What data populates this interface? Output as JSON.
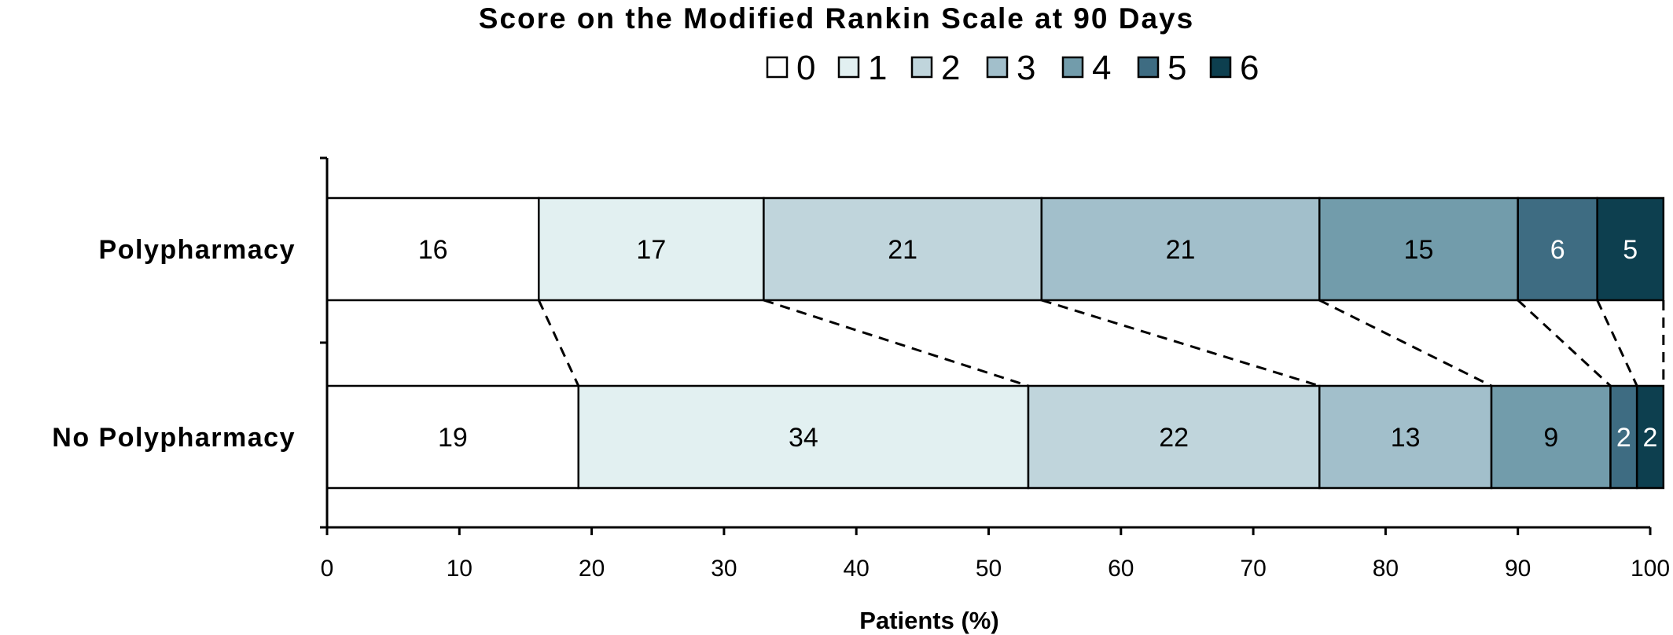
{
  "chart_data": {
    "type": "bar",
    "orientation": "horizontal",
    "stacked": true,
    "title": "Score on the Modified Rankin Scale at 90 Days",
    "xlabel": "Patients (%)",
    "ylabel": "",
    "xlim": [
      0,
      100
    ],
    "xticks": [
      "0",
      "10",
      "20",
      "30",
      "40",
      "50",
      "60",
      "70",
      "80",
      "90",
      "100"
    ],
    "legend_position": "top",
    "categories": [
      "Polypharmacy",
      "No Polypharmacy"
    ],
    "segments": [
      {
        "name": "0",
        "color": "#ffffff",
        "label_color": "#000000"
      },
      {
        "name": "1",
        "color": "#e2f0f1",
        "label_color": "#000000"
      },
      {
        "name": "2",
        "color": "#c0d5dc",
        "label_color": "#000000"
      },
      {
        "name": "3",
        "color": "#a2bfcb",
        "label_color": "#000000"
      },
      {
        "name": "4",
        "color": "#729cab",
        "label_color": "#000000"
      },
      {
        "name": "5",
        "color": "#3e6c82",
        "label_color": "#ffffff"
      },
      {
        "name": "6",
        "color": "#0d3f4f",
        "label_color": "#ffffff"
      }
    ],
    "rows": [
      {
        "category": "Polypharmacy",
        "values": [
          16,
          17,
          21,
          21,
          15,
          6,
          5
        ],
        "labels": [
          "16",
          "17",
          "21",
          "21",
          "15",
          "6",
          "5"
        ]
      },
      {
        "category": "No Polypharmacy",
        "values": [
          19,
          34,
          22,
          13,
          9,
          2,
          2
        ],
        "labels": [
          "19",
          "34",
          "22",
          "13",
          "9",
          "2",
          "2"
        ]
      }
    ],
    "connector_lines": "dashed",
    "grid": false
  }
}
